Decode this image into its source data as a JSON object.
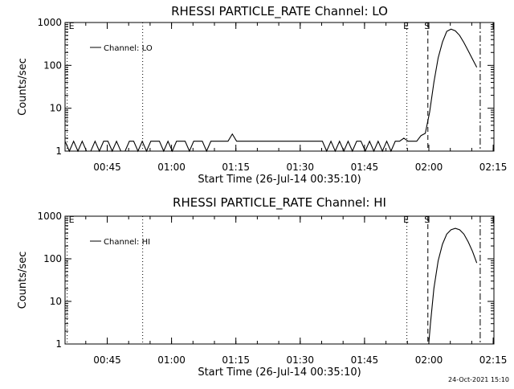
{
  "footer": {
    "timestamp": "24-Oct-2021 15:10"
  },
  "chart_data": [
    {
      "type": "line",
      "title": "RHESSI PARTICLE_RATE Channel: LO",
      "xlabel": "Start Time (26-Jul-14 00:35:10)",
      "ylabel": "Counts/sec",
      "yscale": "log",
      "ylim": [
        1,
        1000
      ],
      "xlim_minutes_after_start": [
        0,
        100
      ],
      "x_tick_labels": [
        "00:45",
        "01:00",
        "01:15",
        "01:30",
        "01:45",
        "02:00",
        "02:15"
      ],
      "x_tick_minutes_after_start": [
        9.83,
        24.83,
        39.83,
        54.83,
        69.83,
        84.83,
        99.83
      ],
      "y_tick_labels": [
        "1",
        "10",
        "100",
        "1000"
      ],
      "y_tick_values": [
        1,
        10,
        100,
        1000
      ],
      "legend": {
        "position": "top-left",
        "entries": [
          "Channel: LO"
        ]
      },
      "markers": [
        {
          "label": "E",
          "x": 0.5,
          "style": "dotted"
        },
        {
          "label": "",
          "x": 18.1,
          "style": "dotted"
        },
        {
          "label": "E",
          "x": 79.7,
          "style": "dotted"
        },
        {
          "label": "S",
          "x": 84.6,
          "style": "dashed"
        },
        {
          "label": "",
          "x": 96.8,
          "style": "dash-dot"
        }
      ],
      "series": [
        {
          "name": "Channel: LO",
          "x": [
            0,
            1,
            2,
            3,
            4,
            5,
            6,
            7,
            8,
            9,
            10,
            11,
            12,
            13,
            14,
            15,
            16,
            17,
            18,
            19,
            20,
            21,
            22,
            23,
            24,
            25,
            26,
            27,
            28,
            29,
            30,
            31,
            32,
            33,
            34,
            35,
            36,
            37,
            38,
            39,
            40,
            41,
            42,
            43,
            44,
            45,
            46,
            47,
            48,
            49,
            50,
            51,
            52,
            53,
            54,
            55,
            56,
            57,
            58,
            59,
            60,
            61,
            62,
            63,
            64,
            65,
            66,
            67,
            68,
            69,
            70,
            71,
            72,
            73,
            74,
            75,
            76,
            77,
            78,
            79,
            80,
            81,
            82,
            83,
            84,
            85,
            86,
            87,
            88,
            89,
            90,
            91,
            92,
            93,
            94,
            95,
            96
          ],
          "y": [
            1.7,
            1,
            1.7,
            1,
            1.7,
            1,
            1,
            1.7,
            1,
            1.7,
            1.7,
            1,
            1.7,
            1,
            1,
            1.7,
            1.7,
            1,
            1.7,
            1,
            1.7,
            1.7,
            1.7,
            1,
            1.7,
            1,
            1.7,
            1.7,
            1.7,
            1,
            1.7,
            1.7,
            1.7,
            1,
            1.7,
            1.7,
            1.7,
            1.7,
            1.7,
            2.5,
            1.7,
            1.7,
            1.7,
            1.7,
            1.7,
            1.7,
            1.7,
            1.7,
            1.7,
            1.7,
            1.7,
            1.7,
            1.7,
            1.7,
            1.7,
            1.7,
            1.7,
            1.7,
            1.7,
            1.7,
            1.7,
            1,
            1.7,
            1,
            1.7,
            1,
            1.7,
            1,
            1.7,
            1.7,
            1,
            1.7,
            1,
            1.7,
            1,
            1.7,
            1,
            1.7,
            1.7,
            2,
            1.7,
            1.7,
            1.7,
            2.3,
            2.6,
            8,
            40,
            150,
            350,
            620,
            700,
            640,
            500,
            340,
            220,
            140,
            90
          ]
        }
      ]
    },
    {
      "type": "line",
      "title": "RHESSI PARTICLE_RATE Channel: HI",
      "xlabel": "Start Time (26-Jul-14 00:35:10)",
      "ylabel": "Counts/sec",
      "yscale": "log",
      "ylim": [
        1,
        1000
      ],
      "xlim_minutes_after_start": [
        0,
        100
      ],
      "x_tick_labels": [
        "00:45",
        "01:00",
        "01:15",
        "01:30",
        "01:45",
        "02:00",
        "02:15"
      ],
      "x_tick_minutes_after_start": [
        9.83,
        24.83,
        39.83,
        54.83,
        69.83,
        84.83,
        99.83
      ],
      "y_tick_labels": [
        "1",
        "10",
        "100",
        "1000"
      ],
      "y_tick_values": [
        1,
        10,
        100,
        1000
      ],
      "legend": {
        "position": "top-left",
        "entries": [
          "Channel: HI"
        ]
      },
      "markers": [
        {
          "label": "E",
          "x": 0.5,
          "style": "dotted"
        },
        {
          "label": "",
          "x": 18.1,
          "style": "dotted"
        },
        {
          "label": "E",
          "x": 79.7,
          "style": "dotted"
        },
        {
          "label": "S",
          "x": 84.6,
          "style": "dashed"
        },
        {
          "label": "",
          "x": 96.8,
          "style": "dash-dot"
        }
      ],
      "series": [
        {
          "name": "Channel: HI",
          "x": [
            84.8,
            85.2,
            86,
            87,
            88,
            89,
            90,
            91,
            92,
            93,
            94,
            95,
            96
          ],
          "y": [
            1,
            3,
            20,
            90,
            220,
            380,
            480,
            520,
            480,
            380,
            250,
            150,
            80
          ]
        }
      ]
    }
  ]
}
